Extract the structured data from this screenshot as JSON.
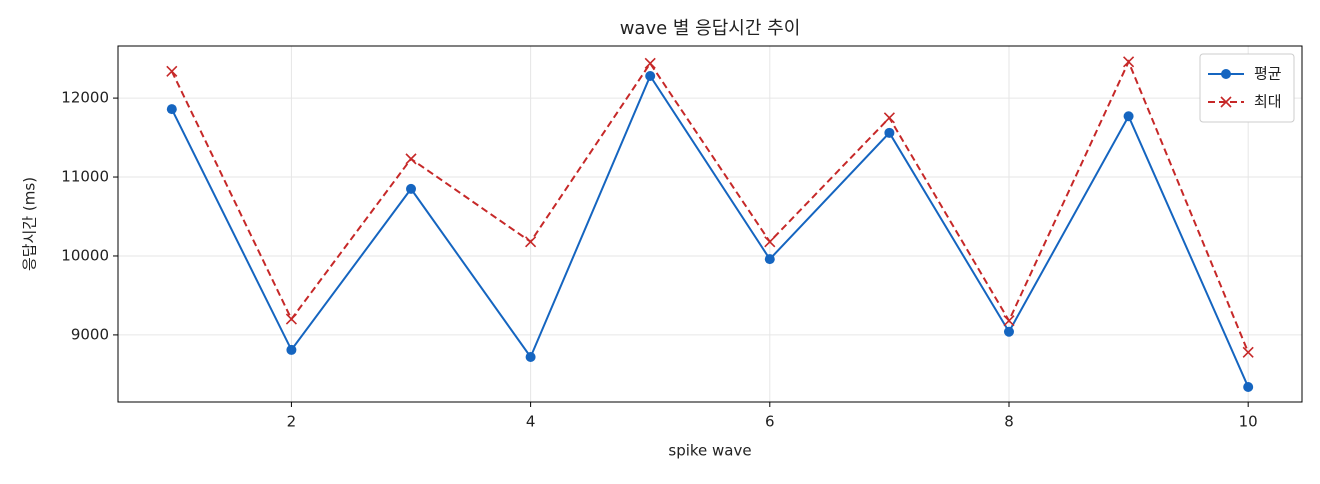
{
  "chart_data": {
    "type": "line",
    "title": "wave 별 응답시간 추이",
    "xlabel": "spike wave",
    "ylabel": "응답시간 (ms)",
    "x": [
      1,
      2,
      3,
      4,
      5,
      6,
      7,
      8,
      9,
      10
    ],
    "series": [
      {
        "name": "평균",
        "color": "#1565c0",
        "marker": "o",
        "linestyle": "solid",
        "values": [
          11860,
          8810,
          10850,
          8720,
          12280,
          9960,
          11560,
          9040,
          11770,
          8340
        ]
      },
      {
        "name": "최대",
        "color": "#c62828",
        "marker": "x",
        "linestyle": "dashed",
        "values": [
          12340,
          9200,
          11230,
          10180,
          12440,
          10180,
          11750,
          9180,
          12460,
          8780
        ]
      }
    ],
    "xlim": [
      0.55,
      10.45
    ],
    "xticks": [
      2,
      4,
      6,
      8,
      10
    ],
    "ylim": [
      8150,
      12660
    ],
    "yticks": [
      9000,
      10000,
      11000,
      12000
    ],
    "grid": true,
    "legend": "upper right"
  }
}
